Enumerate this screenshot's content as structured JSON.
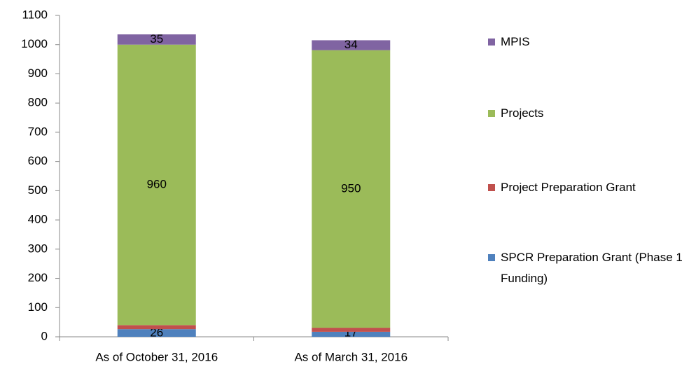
{
  "chart_data": {
    "type": "stacked-bar",
    "categories": [
      "As of October 31, 2016",
      "As of March 31, 2016"
    ],
    "series": [
      {
        "name": "SPCR Preparation Grant (Phase 1 Funding)",
        "color": "#4f81bd",
        "values": [
          26,
          17
        ]
      },
      {
        "name": "Project Preparation Grant",
        "color": "#c0504d",
        "values": [
          14,
          14
        ]
      },
      {
        "name": "Projects",
        "color": "#9bbb59",
        "values": [
          960,
          950
        ]
      },
      {
        "name": "MPIS",
        "color": "#8064a2",
        "values": [
          35,
          34
        ]
      }
    ],
    "ylim": [
      0,
      1100
    ],
    "yticks": [
      0,
      100,
      200,
      300,
      400,
      500,
      600,
      700,
      800,
      900,
      1000,
      1100
    ],
    "grid": false,
    "legend": "right"
  }
}
